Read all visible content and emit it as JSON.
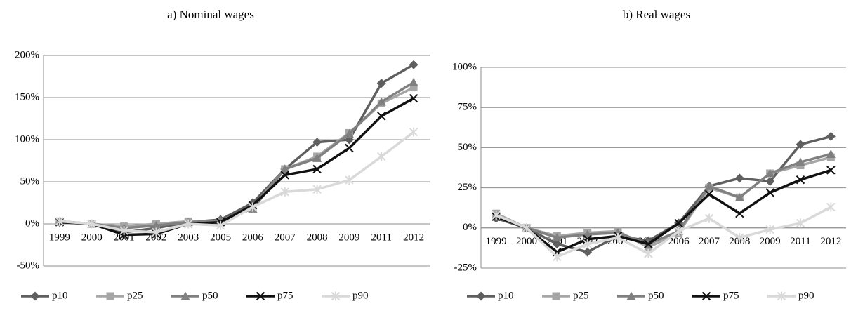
{
  "chart_data": [
    {
      "type": "line",
      "title": "a) Nominal wages",
      "categories": [
        "1999",
        "2000",
        "2001",
        "2002",
        "2003",
        "2005",
        "2006",
        "2007",
        "2008",
        "2009",
        "2011",
        "2012"
      ],
      "ylim": [
        -50,
        200
      ],
      "yticks": [
        {
          "value": -50,
          "label": "-50%"
        },
        {
          "value": 0,
          "label": "0%"
        },
        {
          "value": 50,
          "label": "50%"
        },
        {
          "value": 100,
          "label": "100%"
        },
        {
          "value": 150,
          "label": "150%"
        },
        {
          "value": 200,
          "label": "200%"
        }
      ],
      "grid": true,
      "series": [
        {
          "name": "p10",
          "color": "#5f5f5f",
          "marker": "diamond",
          "values": [
            2,
            0,
            -10,
            -5,
            2,
            5,
            25,
            65,
            97,
            100,
            167,
            189
          ]
        },
        {
          "name": "p25",
          "color": "#a6a6a6",
          "marker": "square",
          "values": [
            3,
            0,
            -3,
            0,
            3,
            3,
            20,
            65,
            80,
            108,
            143,
            162
          ]
        },
        {
          "name": "p50",
          "color": "#808080",
          "marker": "triangle",
          "values": [
            3,
            0,
            -5,
            -2,
            2,
            4,
            18,
            65,
            78,
            107,
            145,
            168
          ]
        },
        {
          "name": "p75",
          "color": "#111111",
          "marker": "x",
          "values": [
            2,
            0,
            -13,
            -12,
            0,
            2,
            22,
            58,
            65,
            90,
            128,
            149
          ]
        },
        {
          "name": "p90",
          "color": "#d9d9d9",
          "marker": "star",
          "values": [
            3,
            0,
            -8,
            -10,
            0,
            -2,
            20,
            38,
            41,
            52,
            80,
            109
          ]
        }
      ]
    },
    {
      "type": "line",
      "title": "b) Real wages",
      "categories": [
        "1999",
        "2000",
        "2001",
        "2002",
        "2003",
        "2005",
        "2006",
        "2007",
        "2008",
        "2009",
        "2011",
        "2012"
      ],
      "ylim": [
        -25,
        100
      ],
      "yticks": [
        {
          "value": -25,
          "label": "-25%"
        },
        {
          "value": 0,
          "label": "0%"
        },
        {
          "value": 25,
          "label": "25%"
        },
        {
          "value": 50,
          "label": "50%"
        },
        {
          "value": 75,
          "label": "75%"
        },
        {
          "value": 100,
          "label": "100%"
        }
      ],
      "grid": true,
      "series": [
        {
          "name": "p10",
          "color": "#5f5f5f",
          "marker": "diamond",
          "values": [
            6,
            0,
            -10,
            -15,
            -5,
            -8,
            3,
            26,
            31,
            29,
            52,
            57
          ]
        },
        {
          "name": "p25",
          "color": "#a6a6a6",
          "marker": "square",
          "values": [
            9,
            0,
            -5,
            -3,
            -2,
            -12,
            -3,
            25,
            19,
            34,
            39,
            44
          ]
        },
        {
          "name": "p50",
          "color": "#808080",
          "marker": "triangle",
          "values": [
            8,
            0,
            -6,
            -4,
            -3,
            -10,
            -2,
            26,
            19,
            34,
            41,
            46
          ]
        },
        {
          "name": "p75",
          "color": "#111111",
          "marker": "x",
          "values": [
            7,
            0,
            -15,
            -7,
            -5,
            -10,
            3,
            21,
            9,
            22,
            30,
            36
          ]
        },
        {
          "name": "p90",
          "color": "#d9d9d9",
          "marker": "star",
          "values": [
            8,
            0,
            -18,
            -10,
            -6,
            -16,
            -2,
            6,
            -6,
            -1,
            3,
            13
          ]
        }
      ]
    }
  ]
}
